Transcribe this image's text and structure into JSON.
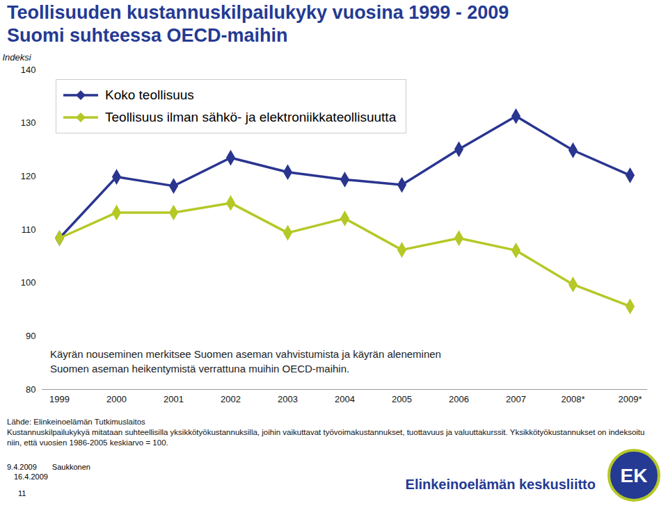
{
  "chart_data": {
    "type": "line",
    "title": "Teollisuuden kustannuskilpailukyky vuosina 1999 - 2009",
    "subtitle": "Suomi suhteessa OECD-maihin",
    "y_label": "Indeksi",
    "categories": [
      "1999",
      "2000",
      "2001",
      "2002",
      "2003",
      "2004",
      "2005",
      "2006",
      "2007",
      "2008*",
      "2009*"
    ],
    "series": [
      {
        "name": "Koko teollisuus",
        "color": "#2a3590",
        "marker": "diamond",
        "values": [
          108.4,
          119.9,
          118.2,
          123.5,
          120.8,
          119.4,
          118.4,
          125.1,
          131.3,
          124.9,
          120.2
        ]
      },
      {
        "name": "Teollisuus ilman sähkö- ja elektroniikkateollisuutta",
        "color": "#b5c826",
        "marker": "diamond",
        "values": [
          108.4,
          113.2,
          113.2,
          115.0,
          109.4,
          112.1,
          106.2,
          108.4,
          106.1,
          99.7,
          95.6
        ]
      }
    ],
    "ylim": [
      80,
      140
    ],
    "yticks": [
      80,
      90,
      100,
      110,
      120,
      130,
      140
    ],
    "grid": false,
    "legend": "top-left",
    "annotations": [
      "Käyrän nouseminen merkitsee Suomen aseman vahvistumista ja käyrän aleneminen Suomen aseman heikentymistä verrattuna muihin OECD-maihin."
    ],
    "notes": [
      "Lähde: Elinkeinoelämän Tutkimuslaitos",
      "Kustannuskilpailukykyä mitataan suhteellisilla yksikkötyökustannuksilla, joihin vaikuttavat työvoimakustannukset, tuottavuus ja valuuttakurssit. Yksikkötyökustannukset on indeksoitu niin, että vuosien 1986-2005 keskiarvo = 100."
    ],
    "footer": [
      "9.4.2009",
      "Saukkonen",
      "16.4.2009",
      "11"
    ],
    "logo": [
      "Elinkeinoelämän keskusliitto",
      "EK"
    ]
  }
}
